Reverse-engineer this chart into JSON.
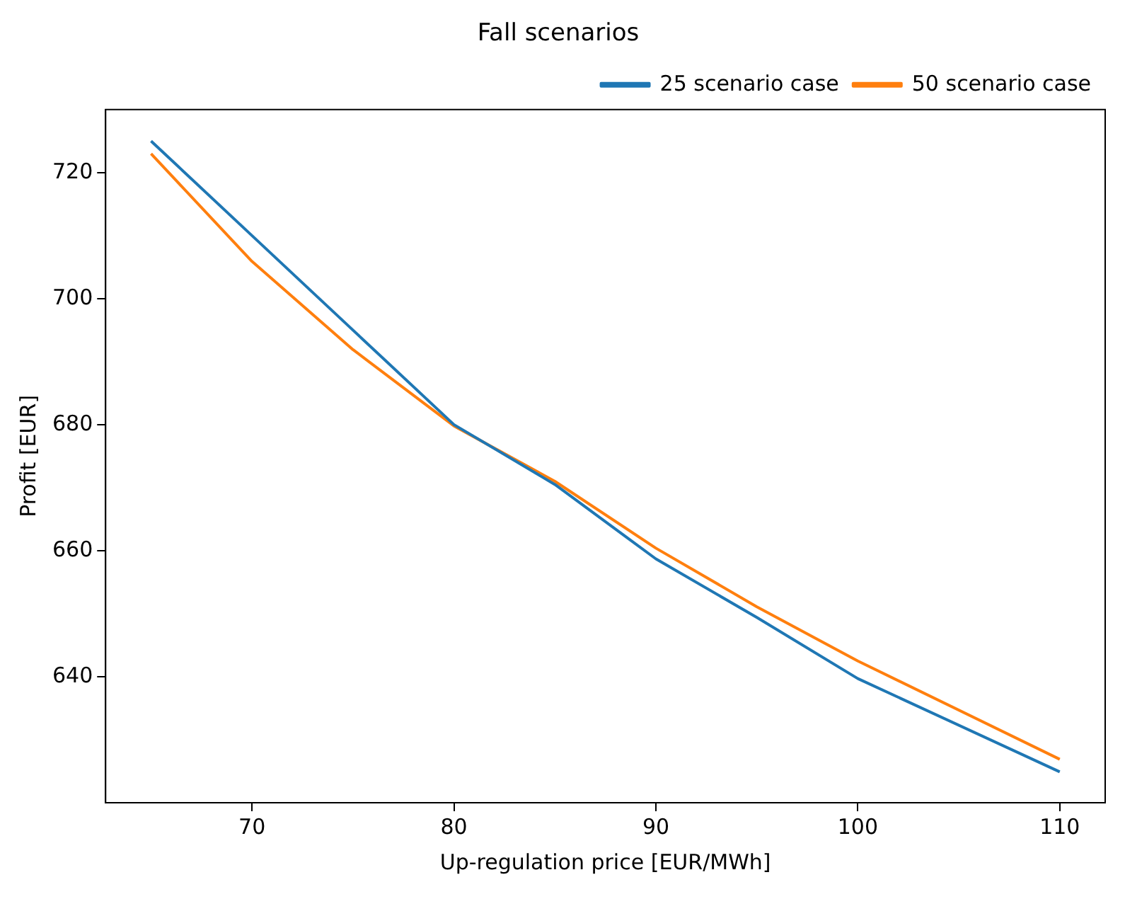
{
  "chart_data": {
    "type": "line",
    "title": "Fall scenarios",
    "xlabel": "Up-regulation price [EUR/MWh]",
    "ylabel": "Profit [EUR]",
    "x": [
      65,
      70,
      75,
      80,
      85,
      90,
      95,
      100,
      110
    ],
    "series": [
      {
        "name": "25 scenario case",
        "color": "#1f77b4",
        "values": [
          725,
          710,
          695,
          680,
          670.5,
          658.7,
          649.4,
          639.7,
          624.9
        ]
      },
      {
        "name": "50 scenario case",
        "color": "#ff7f0e",
        "values": [
          723,
          705.9,
          691.9,
          679.8,
          671,
          660.4,
          651.1,
          642.5,
          626.9
        ]
      }
    ],
    "xlim": [
      62.75,
      112.25
    ],
    "xticks": [
      70,
      80,
      90,
      100,
      110
    ],
    "ylim": [
      620,
      730
    ],
    "yticks": [
      640,
      660,
      680,
      700,
      720
    ],
    "grid": false,
    "legend": "top right",
    "marker": "none",
    "line_style": "solid"
  }
}
